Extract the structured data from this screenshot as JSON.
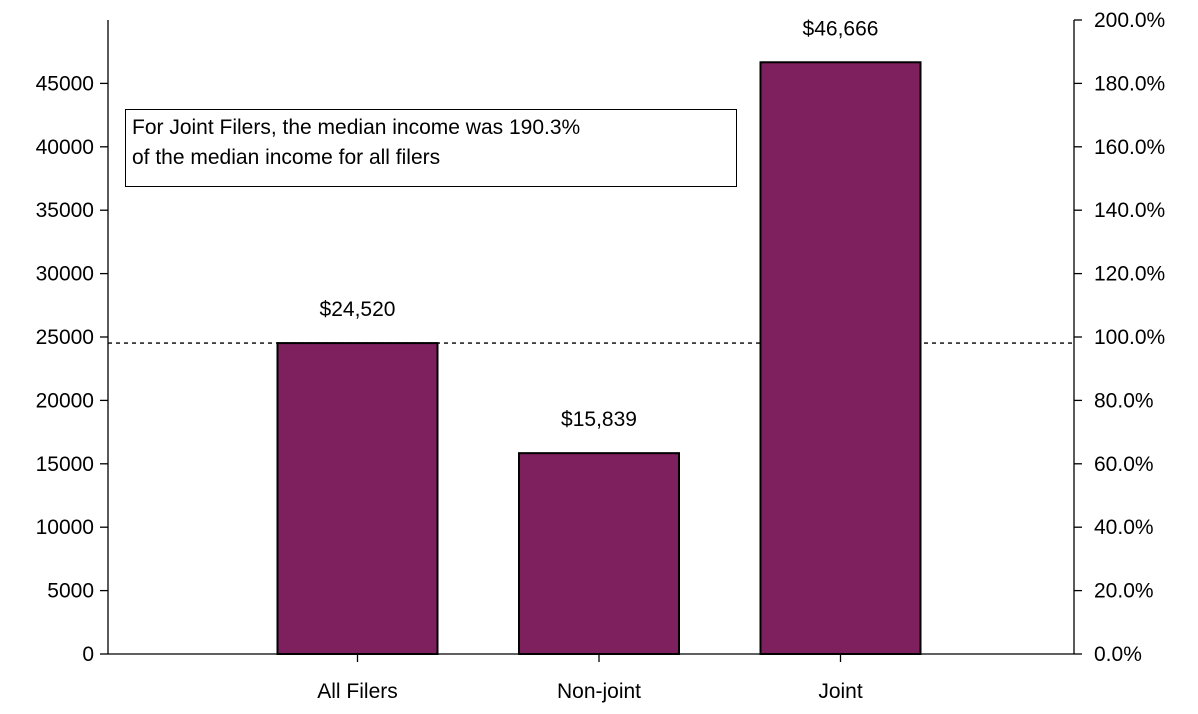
{
  "chart_data": {
    "type": "bar",
    "title": "",
    "xlabel": "",
    "ylabel": "",
    "categories": [
      "All Filers",
      "Non-joint",
      "Joint"
    ],
    "series": [
      {
        "values": [
          24520,
          15839,
          46666
        ],
        "data_labels": [
          "$24,520",
          "$15,839",
          "$46,666"
        ],
        "color": "#7e1f5e"
      }
    ],
    "ylim": [
      0,
      50000
    ],
    "yticks": [
      0,
      5000,
      10000,
      15000,
      20000,
      25000,
      30000,
      35000,
      40000,
      45000
    ],
    "ytick_labels": [
      "0",
      "5000",
      "10000",
      "15000",
      "20000",
      "25000",
      "30000",
      "35000",
      "40000",
      "45000"
    ],
    "y2lim": [
      0,
      2.0
    ],
    "y2ticks": [
      0,
      0.2,
      0.4,
      0.6,
      0.8,
      1.0,
      1.2,
      1.4,
      1.6,
      1.8,
      2.0
    ],
    "y2tick_labels": [
      "0.0%",
      "20.0%",
      "40.0%",
      "60.0%",
      "80.0%",
      "100.0%",
      "120.0%",
      "140.0%",
      "160.0%",
      "180.0%",
      "200.0%"
    ],
    "reference_line": {
      "value": 24520,
      "style": "dashed"
    },
    "annotation": {
      "lines": [
        "For Joint Filers, the median income was 190.3%",
        "of the median income for all filers"
      ]
    },
    "grid": false,
    "legend": "none",
    "bar_outline_color": "#000000",
    "axis_color": "#000000"
  }
}
